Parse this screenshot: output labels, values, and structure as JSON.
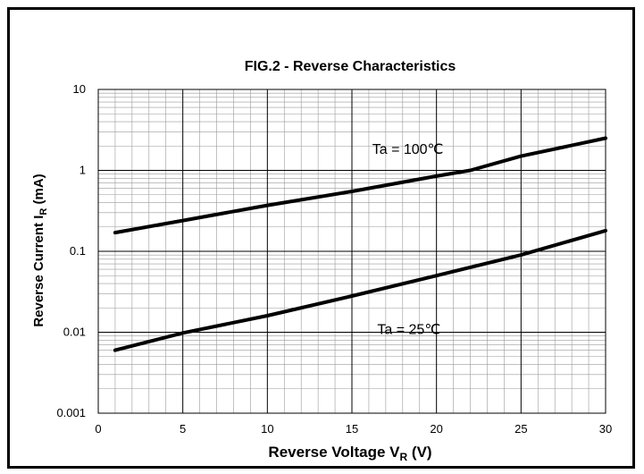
{
  "chart_data": {
    "type": "line",
    "title": "FIG.2 - Reverse Characteristics",
    "xlabel": {
      "text": "Reverse Voltage V",
      "sub": "R",
      "suffix": " (V)"
    },
    "ylabel": {
      "text": "Reverse Current I",
      "sub": "R",
      "suffix": " (mA)"
    },
    "xlim": [
      0,
      30
    ],
    "ylim": [
      0.001,
      10
    ],
    "yscale": "log",
    "grid": true,
    "x_ticks": [
      "0",
      "5",
      "10",
      "15",
      "20",
      "25",
      "30"
    ],
    "y_ticks": [
      "0.001",
      "0.01",
      "0.1",
      "1",
      "10"
    ],
    "series": [
      {
        "name": "Ta = 100℃",
        "x": [
          1,
          5,
          10,
          15,
          20,
          22,
          25,
          30
        ],
        "y": [
          0.17,
          0.24,
          0.37,
          0.55,
          0.85,
          1.0,
          1.5,
          2.5
        ]
      },
      {
        "name": "Ta = 25℃",
        "x": [
          1,
          5,
          10,
          15,
          20,
          25,
          30
        ],
        "y": [
          0.006,
          0.0098,
          0.016,
          0.028,
          0.05,
          0.09,
          0.18
        ]
      }
    ],
    "annotations": [
      {
        "text": "Ta = 100℃",
        "x": 16.2,
        "y": 1.6
      },
      {
        "text": "Ta = 25℃",
        "x": 16.5,
        "y": 0.0095
      }
    ]
  }
}
